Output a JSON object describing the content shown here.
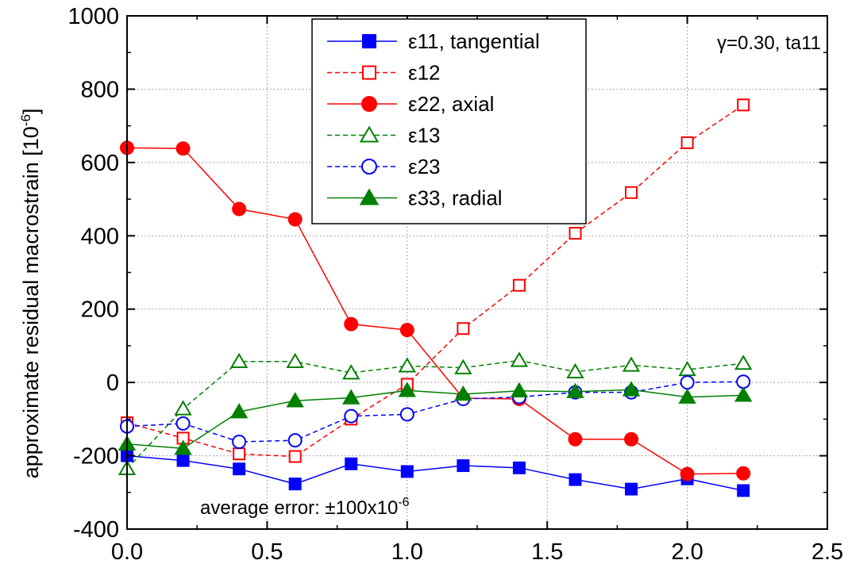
{
  "chart_data": {
    "type": "line",
    "ylabel": "approximate residual macrostrain [10",
    "ylabel_exp": "-6",
    "ylabel_close": "]",
    "xlim": [
      0,
      2.5
    ],
    "ylim": [
      -400,
      1000
    ],
    "x_ticks": [
      "0.0",
      "0.5",
      "1.0",
      "1.5",
      "2.0",
      "2.5"
    ],
    "y_ticks": [
      "-400",
      "-200",
      "0",
      "200",
      "400",
      "600",
      "800",
      "1000"
    ],
    "grid": true,
    "legend_position": "top-center",
    "annotations": {
      "top_right": "γ=0.30, ta11",
      "error_main": "average error: ±100x10",
      "error_exp": "-6"
    },
    "series": [
      {
        "name": "ε11, tangential",
        "color": "#0000ff",
        "dash": false,
        "marker": "square",
        "filled": true,
        "x": [
          0.0,
          0.2,
          0.4,
          0.6,
          0.8,
          1.0,
          1.2,
          1.4,
          1.6,
          1.8,
          2.0,
          2.2
        ],
        "y": [
          -200,
          -213,
          -236,
          -277,
          -222,
          -243,
          -227,
          -233,
          -265,
          -291,
          -263,
          -295
        ]
      },
      {
        "name": "ε12",
        "color": "#ff0000",
        "dash": true,
        "marker": "square",
        "filled": false,
        "x": [
          0.0,
          0.2,
          0.4,
          0.6,
          0.8,
          1.0,
          1.2,
          1.4,
          1.6,
          1.8,
          2.0,
          2.2
        ],
        "y": [
          -110,
          -152,
          -195,
          -202,
          -100,
          -5,
          147,
          265,
          407,
          518,
          654,
          757
        ]
      },
      {
        "name": "ε22, axial",
        "color": "#ff0000",
        "dash": false,
        "marker": "circle",
        "filled": true,
        "x": [
          0.0,
          0.2,
          0.4,
          0.6,
          0.8,
          1.0,
          1.2,
          1.4,
          1.6,
          1.8,
          2.0,
          2.2
        ],
        "y": [
          640,
          638,
          473,
          445,
          159,
          143,
          -43,
          -45,
          -155,
          -155,
          -250,
          -248
        ]
      },
      {
        "name": "ε13",
        "color": "#008000",
        "dash": true,
        "marker": "triangle",
        "filled": false,
        "x": [
          0.0,
          0.2,
          0.4,
          0.6,
          0.8,
          1.0,
          1.2,
          1.4,
          1.6,
          1.8,
          2.0,
          2.2
        ],
        "y": [
          -235,
          -72,
          57,
          57,
          26,
          45,
          40,
          60,
          29,
          47,
          35,
          52
        ]
      },
      {
        "name": "ε23",
        "color": "#0000ff",
        "dash": true,
        "marker": "circle",
        "filled": false,
        "x": [
          0.0,
          0.2,
          0.4,
          0.6,
          0.8,
          1.0,
          1.2,
          1.4,
          1.6,
          1.8,
          2.0,
          2.2
        ],
        "y": [
          -120,
          -112,
          -162,
          -158,
          -92,
          -87,
          -45,
          -40,
          -27,
          -27,
          0,
          2
        ]
      },
      {
        "name": "ε33, radial",
        "color": "#008000",
        "dash": false,
        "marker": "triangle",
        "filled": true,
        "x": [
          0.0,
          0.2,
          0.4,
          0.6,
          0.8,
          1.0,
          1.2,
          1.4,
          1.6,
          1.8,
          2.0,
          2.2
        ],
        "y": [
          -168,
          -180,
          -80,
          -50,
          -42,
          -22,
          -32,
          -23,
          -25,
          -20,
          -40,
          -35
        ]
      }
    ]
  }
}
